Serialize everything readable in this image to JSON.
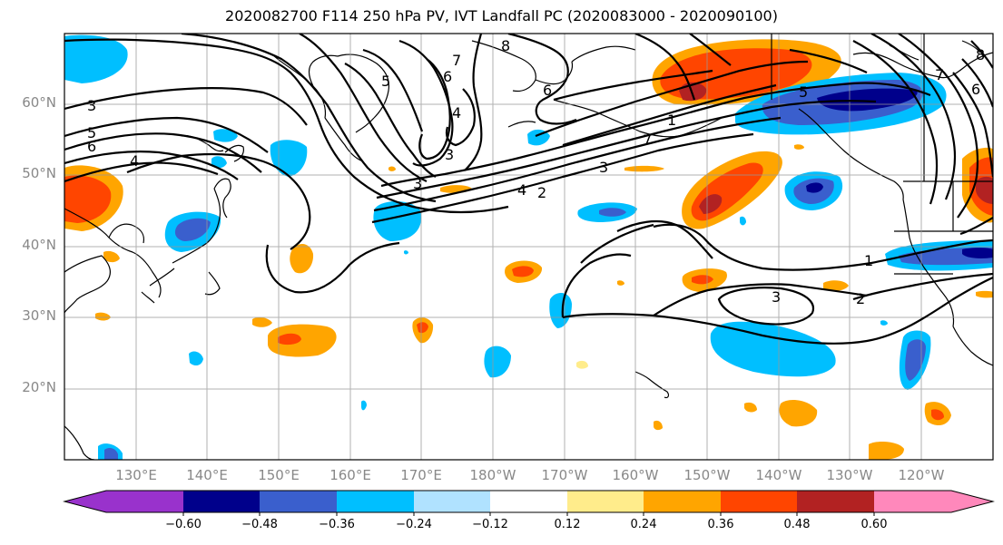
{
  "title": "2020082700 F114 250 hPa PV, IVT Landfall PC (2020083000 - 2020090100)",
  "map": {
    "lat_labels": [
      "60°N",
      "50°N",
      "40°N",
      "30°N",
      "20°N"
    ],
    "lon_labels": [
      "130°E",
      "140°E",
      "150°E",
      "160°E",
      "170°E",
      "180°W",
      "170°W",
      "160°W",
      "150°W",
      "140°W",
      "130°W",
      "120°W"
    ],
    "contour_labels": [
      "3",
      "5",
      "6",
      "4",
      "8",
      "7",
      "6",
      "5",
      "4",
      "3",
      "3",
      "6",
      "7",
      "1",
      "2",
      "3",
      "4",
      "5",
      "6",
      "7",
      "8",
      "1",
      "2",
      "3"
    ]
  },
  "colorbar": {
    "ticks": [
      "−0.60",
      "−0.48",
      "−0.36",
      "−0.24",
      "−0.12",
      "0.12",
      "0.24",
      "0.36",
      "0.48",
      "0.60"
    ],
    "colors": [
      "#9932cc",
      "#00008b",
      "#3a5fcd",
      "#00bfff",
      "#b0e2ff",
      "#ffffff",
      "#ffec8b",
      "#ffa500",
      "#ff4500",
      "#b22222",
      "#ff88bb"
    ]
  }
}
